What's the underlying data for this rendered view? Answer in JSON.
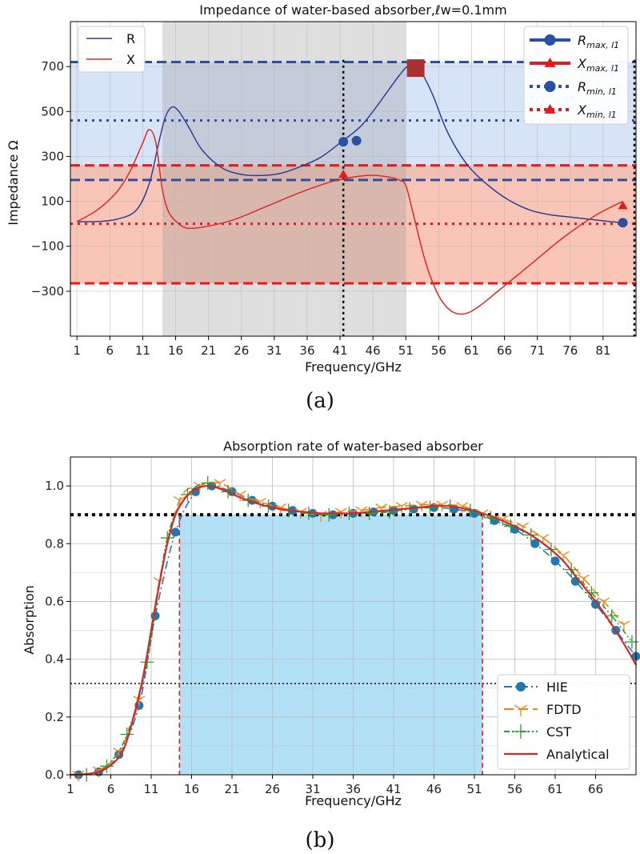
{
  "chart_data": [
    {
      "type": "line",
      "title": "Impedance of water-based absorber,ℓw=0.1mm",
      "xlabel": "Frequency/GHz",
      "ylabel": "Impedance Ω",
      "caption": "(a)",
      "xlim": [
        0,
        86
      ],
      "ylim": [
        -500,
        900
      ],
      "xticks": [
        1,
        6,
        11,
        16,
        21,
        26,
        31,
        36,
        41,
        46,
        51,
        56,
        61,
        66,
        71,
        76,
        81
      ],
      "yticks": [
        700,
        500,
        300,
        100,
        -100,
        -300
      ],
      "ytick_labels": [
        "700",
        "500",
        "300",
        "100",
        "−100",
        "−300"
      ],
      "grid": true,
      "regions": {
        "r_band": {
          "y": [
            195,
            720
          ],
          "color": "#c9d9f3"
        },
        "x_band": {
          "y": [
            -265,
            260
          ],
          "color": "#f6b7a4"
        },
        "freq_band": {
          "x": [
            14,
            51
          ],
          "color": "#d3d3d3"
        }
      },
      "series": [
        {
          "name": "R",
          "color": "#2e3f99",
          "x": [
            1,
            4,
            7,
            10,
            12,
            13.5,
            14.5,
            15.5,
            16.5,
            18,
            20,
            23,
            26,
            29,
            32,
            35,
            38,
            41,
            44,
            46,
            48,
            50,
            51.5,
            53,
            55,
            57,
            59,
            61,
            64,
            67,
            70,
            73,
            76,
            79,
            82,
            84
          ],
          "y": [
            10,
            10,
            20,
            60,
            180,
            370,
            480,
            520,
            500,
            430,
            330,
            250,
            220,
            215,
            225,
            255,
            295,
            360,
            430,
            500,
            580,
            660,
            705,
            690,
            580,
            430,
            320,
            240,
            160,
            100,
            60,
            40,
            30,
            20,
            10,
            5
          ]
        },
        {
          "name": "X",
          "color": "#de2b25",
          "x": [
            1,
            4,
            7,
            9,
            11,
            12,
            13,
            14,
            15,
            16.5,
            18,
            21,
            25,
            30,
            35,
            40,
            45,
            48,
            50,
            51,
            52,
            54,
            56,
            58,
            60,
            62,
            65,
            70,
            75,
            80,
            84
          ],
          "y": [
            10,
            60,
            140,
            230,
            360,
            420,
            360,
            150,
            50,
            0,
            -20,
            -10,
            20,
            80,
            140,
            190,
            215,
            210,
            195,
            170,
            60,
            -170,
            -320,
            -390,
            -400,
            -370,
            -300,
            -180,
            -60,
            40,
            100
          ]
        }
      ],
      "markers": [
        {
          "name": "Rmax,l1",
          "series": "R",
          "color": "#2a4fa3",
          "points": [
            [
              52.5,
              693
            ]
          ]
        },
        {
          "name": "Xmax,l1",
          "series": "X",
          "color": "#e8191c",
          "points": [
            [
              41.5,
              220
            ]
          ]
        },
        {
          "name": "Rmin,l1",
          "series": "R",
          "color": "#2a4fa3",
          "points": [
            [
              41.5,
              365
            ],
            [
              43.5,
              370
            ],
            [
              84,
              5
            ]
          ]
        },
        {
          "name": "Xmin,l1",
          "series": "X",
          "color": "#e8191c",
          "points": [
            [
              84,
              80
            ]
          ]
        }
      ],
      "reference_lines": [
        {
          "label": "Rmax,l1",
          "y": 720,
          "color": "#2a4fa3",
          "style": "dashed"
        },
        {
          "label": "Rmin,l1",
          "y": 460,
          "color": "#2a4fa3",
          "style": "dotted"
        },
        {
          "label": "",
          "y": 195,
          "color": "#2a4fa3",
          "style": "dashed"
        },
        {
          "label": "Xmax,l1",
          "y": 260,
          "color": "#e8191c",
          "style": "dashed"
        },
        {
          "label": "Xmin,l1",
          "y": 0,
          "color": "#e8191c",
          "style": "dotted"
        },
        {
          "label": "",
          "y": -265,
          "color": "#e8191c",
          "style": "dashed"
        },
        {
          "label": "",
          "x": 41.5,
          "color": "#000000",
          "style": "dotted"
        },
        {
          "label": "",
          "x": 86,
          "color": "#000000",
          "style": "dotted"
        }
      ],
      "legend_left": [
        {
          "label": "R",
          "color": "#2e3f99"
        },
        {
          "label": "X",
          "color": "#de2b25"
        }
      ],
      "legend_right": [
        {
          "label": "R",
          "sub": "max, l1",
          "color": "#2a4fa3",
          "line": "solid",
          "marker": "circle"
        },
        {
          "label": "X",
          "sub": "max, l1",
          "color": "#e8191c",
          "line": "solid",
          "marker": "triangle"
        },
        {
          "label": "R",
          "sub": "min, l1",
          "color": "#2a4fa3",
          "line": "dotted",
          "marker": "circle"
        },
        {
          "label": "X",
          "sub": "min, l1",
          "color": "#e8191c",
          "line": "dotted",
          "marker": "triangle"
        }
      ]
    },
    {
      "type": "line",
      "title": "Absorption rate of water-based absorber",
      "xlabel": "Frequency/GHz",
      "ylabel": "Absorption",
      "caption": "(b)",
      "xlim": [
        1,
        71
      ],
      "ylim": [
        0,
        1.1
      ],
      "xticks": [
        1,
        6,
        11,
        16,
        21,
        26,
        31,
        36,
        41,
        46,
        51,
        56,
        61,
        66
      ],
      "yticks": [
        0.0,
        0.2,
        0.4,
        0.6,
        0.8,
        1.0
      ],
      "ytick_labels": [
        "0.0",
        "0.2",
        "0.4",
        "0.6",
        "0.8",
        "1.0"
      ],
      "grid": true,
      "shaded_band": {
        "x": [
          14.5,
          52
        ],
        "y": [
          0,
          0.9
        ],
        "color": "#b2e0f5"
      },
      "reference_lines": [
        {
          "y": 0.9,
          "color": "#000000",
          "style": "dotted-thick"
        },
        {
          "y": 0.316,
          "color": "#000000",
          "style": "dotted-thin"
        },
        {
          "x": 14.5,
          "y_top": 0.9,
          "color": "#e8191c",
          "style": "dashed"
        },
        {
          "x": 52,
          "y_top": 0.9,
          "color": "#e8191c",
          "style": "dashed"
        }
      ],
      "series": [
        {
          "name": "HIE",
          "color": "#1f77b4",
          "line": "dashdot",
          "marker": "circle",
          "x": [
            2,
            4.5,
            7,
            9.5,
            11.5,
            14,
            16.5,
            18.5,
            21,
            23.5,
            26,
            28.5,
            31,
            33.5,
            36,
            38.5,
            41,
            43.5,
            46,
            48.5,
            51,
            53.5,
            56,
            58.5,
            61,
            63.5,
            66,
            68.5,
            71
          ],
          "y": [
            0.0,
            0.01,
            0.07,
            0.24,
            0.55,
            0.84,
            0.98,
            1.0,
            0.98,
            0.95,
            0.93,
            0.915,
            0.905,
            0.9,
            0.905,
            0.91,
            0.915,
            0.92,
            0.925,
            0.92,
            0.905,
            0.88,
            0.85,
            0.8,
            0.74,
            0.67,
            0.59,
            0.5,
            0.41
          ]
        },
        {
          "name": "FDTD",
          "color": "#ff7f0e",
          "line": "dashed",
          "marker": "tri_down",
          "x": [
            2,
            4.5,
            7,
            9.5,
            12,
            14.5,
            17,
            19.5,
            22,
            24.5,
            27,
            29.5,
            32,
            34.5,
            37,
            39.5,
            42,
            44.5,
            47,
            49.5,
            52,
            54.5,
            57,
            59.5,
            62,
            64.5,
            67,
            69.5
          ],
          "y": [
            0.0,
            0.015,
            0.08,
            0.26,
            0.67,
            0.95,
            1.0,
            1.01,
            0.97,
            0.945,
            0.925,
            0.91,
            0.9,
            0.91,
            0.915,
            0.925,
            0.93,
            0.935,
            0.935,
            0.93,
            0.905,
            0.885,
            0.86,
            0.82,
            0.76,
            0.68,
            0.6,
            0.52
          ]
        },
        {
          "name": "CST",
          "color": "#2ca02c",
          "line": "dashdotdot",
          "marker": "plus",
          "x": [
            3,
            5.5,
            8,
            10.5,
            13,
            15.5,
            18,
            20.5,
            23,
            25.5,
            28,
            30.5,
            33,
            35.5,
            38,
            40.5,
            43,
            45.5,
            48,
            50.5,
            53,
            55.5,
            58,
            60.5,
            63,
            65.5,
            68,
            70.5
          ],
          "y": [
            0.0,
            0.03,
            0.14,
            0.39,
            0.82,
            0.97,
            1.01,
            0.98,
            0.95,
            0.93,
            0.915,
            0.905,
            0.9,
            0.905,
            0.905,
            0.91,
            0.92,
            0.925,
            0.93,
            0.915,
            0.89,
            0.86,
            0.83,
            0.78,
            0.71,
            0.63,
            0.55,
            0.46
          ]
        },
        {
          "name": "Analytical",
          "color": "#d62728",
          "line": "solid",
          "marker": "none",
          "x": [
            1,
            3,
            5,
            7,
            8,
            9,
            10,
            11,
            12,
            13,
            14,
            15,
            16,
            17,
            18,
            19,
            20,
            22,
            24,
            26,
            28,
            30,
            32,
            34,
            36,
            38,
            40,
            42,
            44,
            46,
            48,
            50,
            52,
            54,
            56,
            58,
            60,
            62,
            64,
            66,
            68,
            70,
            71
          ],
          "y": [
            0.0,
            0.003,
            0.015,
            0.06,
            0.12,
            0.22,
            0.34,
            0.5,
            0.66,
            0.8,
            0.9,
            0.95,
            0.98,
            0.995,
            1.0,
            0.995,
            0.985,
            0.96,
            0.94,
            0.925,
            0.915,
            0.91,
            0.905,
            0.905,
            0.905,
            0.91,
            0.915,
            0.92,
            0.925,
            0.93,
            0.93,
            0.92,
            0.905,
            0.885,
            0.86,
            0.83,
            0.79,
            0.74,
            0.67,
            0.6,
            0.52,
            0.43,
            0.38
          ]
        }
      ],
      "legend": [
        "HIE",
        "FDTD",
        "CST",
        "Analytical"
      ]
    }
  ]
}
